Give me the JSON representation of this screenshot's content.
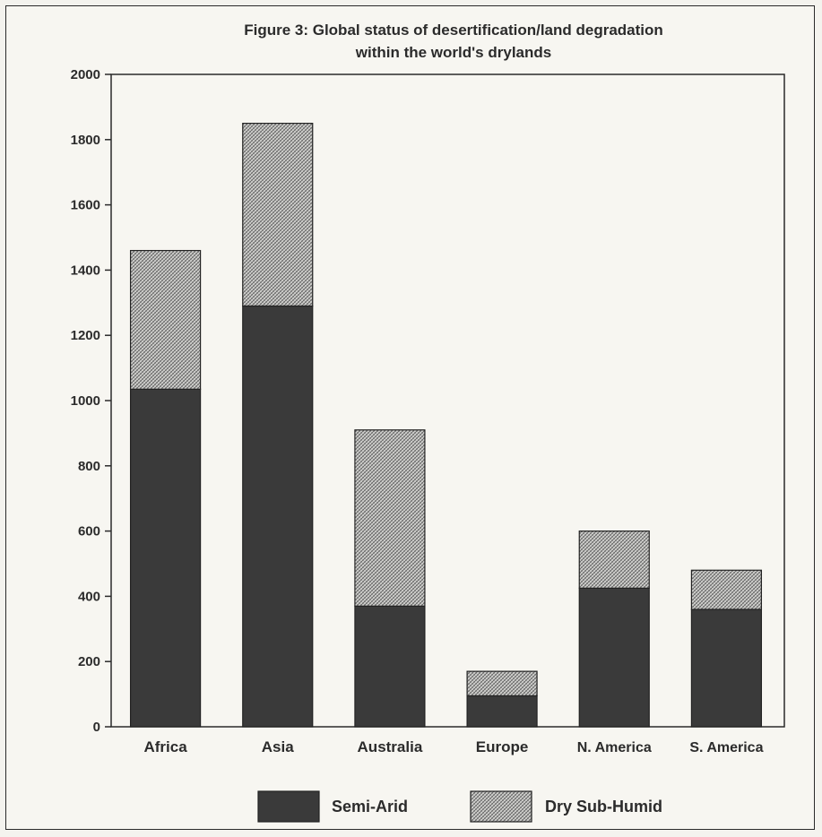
{
  "chart_data": {
    "type": "bar",
    "stacked": true,
    "title": "Figure 3: Global status of desertification/land degradation within the world's drylands",
    "title_lines": [
      "Figure 3: Global status of desertification/land degradation",
      "within the world's drylands"
    ],
    "xlabel": "",
    "ylabel": "",
    "categories": [
      "Africa",
      "Asia",
      "Australia",
      "Europe",
      "N. America",
      "S. America"
    ],
    "series": [
      {
        "name": "Semi-Arid",
        "values": [
          1035,
          1290,
          370,
          95,
          425,
          360
        ],
        "color": "#3a3a3a",
        "pattern": "solid"
      },
      {
        "name": "Dry Sub-Humid",
        "values": [
          425,
          560,
          540,
          75,
          175,
          120
        ],
        "color": "#c8c8c8",
        "pattern": "crosshatch"
      }
    ],
    "ylim": [
      0,
      2000
    ],
    "yticks": [
      0,
      200,
      400,
      600,
      800,
      1000,
      1200,
      1400,
      1600,
      1800,
      2000
    ],
    "grid": false,
    "legend": "bottom"
  }
}
